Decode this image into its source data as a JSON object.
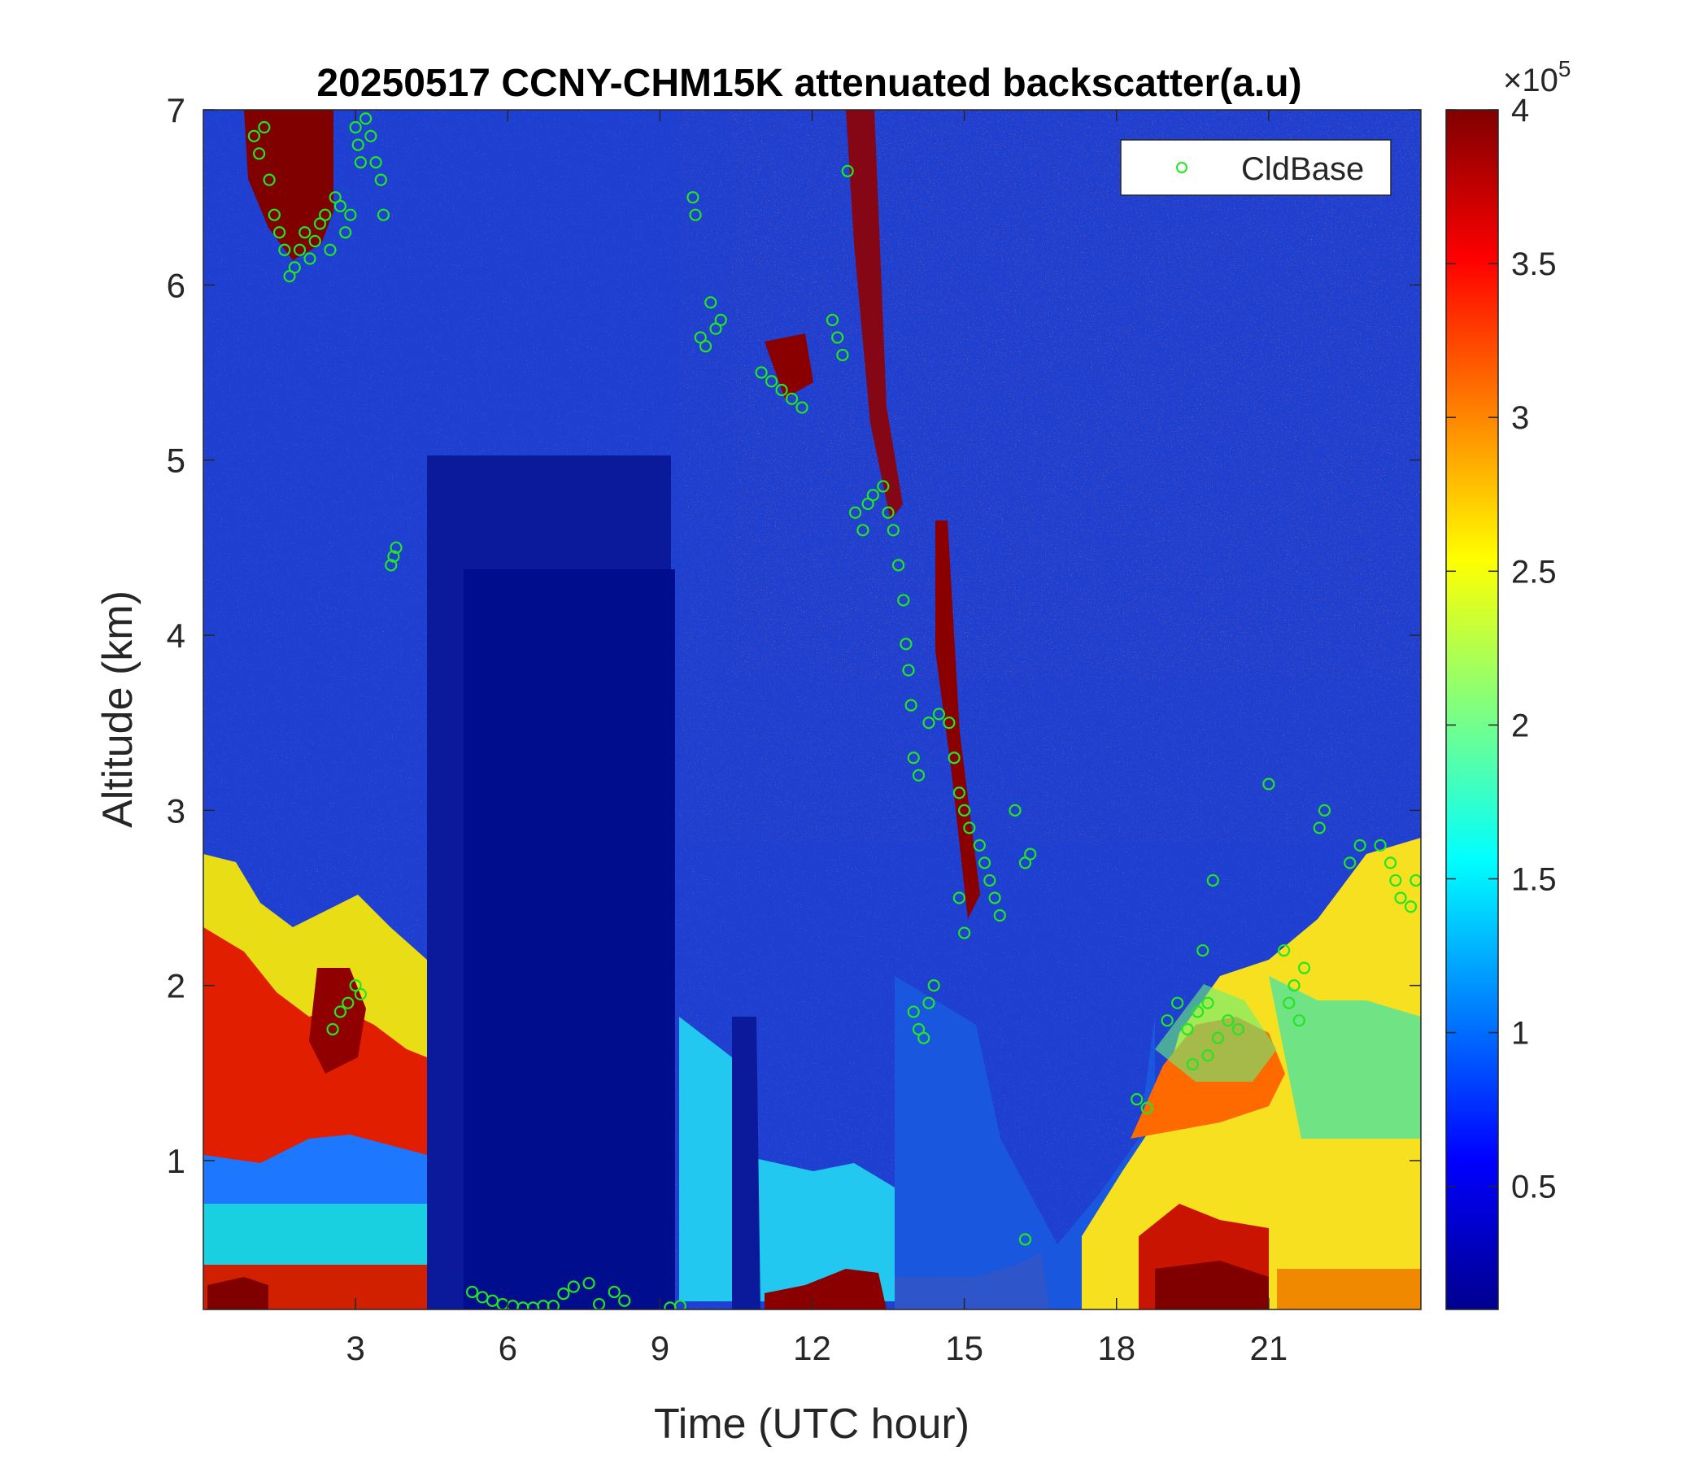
{
  "chart_data": {
    "type": "heatmap",
    "title": "20250517 CCNY-CHM15K attenuated backscatter(a.u)",
    "xlabel": "Time (UTC hour)",
    "ylabel": "Altitude (km)",
    "xlim": [
      0,
      24
    ],
    "ylim": [
      0.15,
      7
    ],
    "xticks": [
      3,
      6,
      9,
      12,
      15,
      18,
      21
    ],
    "yticks": [
      1,
      2,
      3,
      4,
      5,
      6,
      7
    ],
    "colormap": "jet",
    "colorbar": {
      "range": [
        0.1,
        4
      ],
      "ticks": [
        0.5,
        1,
        1.5,
        2,
        2.5,
        3,
        3.5,
        4
      ],
      "multiplier_base": "×10",
      "multiplier_exp": "5"
    },
    "legend": {
      "position": "top-right",
      "entries": [
        "CldBase"
      ],
      "marker_color": "#22e622"
    },
    "cloud_base_series": {
      "name": "CldBase",
      "points": [
        [
          1.0,
          6.85
        ],
        [
          1.1,
          6.75
        ],
        [
          1.2,
          6.9
        ],
        [
          1.3,
          6.6
        ],
        [
          1.4,
          6.4
        ],
        [
          1.5,
          6.3
        ],
        [
          1.6,
          6.2
        ],
        [
          1.7,
          6.05
        ],
        [
          1.8,
          6.1
        ],
        [
          1.9,
          6.2
        ],
        [
          2.0,
          6.3
        ],
        [
          2.1,
          6.15
        ],
        [
          2.2,
          6.25
        ],
        [
          2.3,
          6.35
        ],
        [
          2.4,
          6.4
        ],
        [
          2.5,
          6.2
        ],
        [
          2.6,
          6.5
        ],
        [
          2.7,
          6.45
        ],
        [
          2.8,
          6.3
        ],
        [
          2.9,
          6.4
        ],
        [
          3.0,
          6.9
        ],
        [
          3.05,
          6.8
        ],
        [
          3.1,
          6.7
        ],
        [
          3.2,
          6.95
        ],
        [
          3.3,
          6.85
        ],
        [
          3.4,
          6.7
        ],
        [
          3.5,
          6.6
        ],
        [
          3.55,
          6.4
        ],
        [
          3.7,
          4.4
        ],
        [
          3.75,
          4.45
        ],
        [
          3.8,
          4.5
        ],
        [
          2.55,
          1.75
        ],
        [
          2.7,
          1.85
        ],
        [
          2.85,
          1.9
        ],
        [
          3.0,
          2.0
        ],
        [
          3.1,
          1.95
        ],
        [
          5.3,
          0.25
        ],
        [
          5.5,
          0.22
        ],
        [
          5.7,
          0.2
        ],
        [
          5.9,
          0.18
        ],
        [
          6.1,
          0.17
        ],
        [
          6.3,
          0.16
        ],
        [
          6.5,
          0.16
        ],
        [
          6.7,
          0.17
        ],
        [
          6.9,
          0.17
        ],
        [
          7.1,
          0.24
        ],
        [
          7.3,
          0.28
        ],
        [
          7.6,
          0.3
        ],
        [
          7.8,
          0.18
        ],
        [
          8.1,
          0.25
        ],
        [
          8.3,
          0.2
        ],
        [
          9.2,
          0.16
        ],
        [
          9.4,
          0.17
        ],
        [
          9.65,
          6.5
        ],
        [
          9.7,
          6.4
        ],
        [
          9.8,
          5.7
        ],
        [
          9.9,
          5.65
        ],
        [
          10.0,
          5.9
        ],
        [
          10.1,
          5.75
        ],
        [
          10.2,
          5.8
        ],
        [
          11.0,
          5.5
        ],
        [
          11.2,
          5.45
        ],
        [
          11.4,
          5.4
        ],
        [
          11.6,
          5.35
        ],
        [
          11.8,
          5.3
        ],
        [
          12.4,
          5.8
        ],
        [
          12.5,
          5.7
        ],
        [
          12.6,
          5.6
        ],
        [
          12.7,
          6.65
        ],
        [
          12.85,
          4.7
        ],
        [
          13.0,
          4.6
        ],
        [
          13.1,
          4.75
        ],
        [
          13.2,
          4.8
        ],
        [
          13.4,
          4.85
        ],
        [
          13.5,
          4.7
        ],
        [
          13.6,
          4.6
        ],
        [
          13.7,
          4.4
        ],
        [
          13.8,
          4.2
        ],
        [
          13.85,
          3.95
        ],
        [
          13.9,
          3.8
        ],
        [
          13.95,
          3.6
        ],
        [
          14.0,
          3.3
        ],
        [
          14.1,
          3.2
        ],
        [
          14.0,
          1.85
        ],
        [
          14.1,
          1.75
        ],
        [
          14.2,
          1.7
        ],
        [
          14.3,
          1.9
        ],
        [
          14.4,
          2.0
        ],
        [
          14.3,
          3.5
        ],
        [
          14.5,
          3.55
        ],
        [
          14.7,
          3.5
        ],
        [
          14.8,
          3.3
        ],
        [
          14.9,
          3.1
        ],
        [
          15.0,
          3.0
        ],
        [
          15.1,
          2.9
        ],
        [
          15.3,
          2.8
        ],
        [
          15.4,
          2.7
        ],
        [
          15.5,
          2.6
        ],
        [
          15.6,
          2.5
        ],
        [
          15.7,
          2.4
        ],
        [
          14.9,
          2.5
        ],
        [
          15.0,
          2.3
        ],
        [
          16.0,
          3.0
        ],
        [
          16.2,
          2.7
        ],
        [
          16.3,
          2.75
        ],
        [
          16.2,
          0.55
        ],
        [
          18.4,
          1.35
        ],
        [
          18.6,
          1.3
        ],
        [
          19.0,
          1.8
        ],
        [
          19.2,
          1.9
        ],
        [
          19.4,
          1.75
        ],
        [
          19.6,
          1.85
        ],
        [
          19.8,
          1.9
        ],
        [
          20.0,
          1.7
        ],
        [
          20.2,
          1.8
        ],
        [
          20.4,
          1.75
        ],
        [
          19.7,
          2.2
        ],
        [
          19.9,
          2.6
        ],
        [
          19.5,
          1.55
        ],
        [
          19.8,
          1.6
        ],
        [
          21.0,
          3.15
        ],
        [
          21.3,
          2.2
        ],
        [
          21.4,
          1.9
        ],
        [
          21.5,
          2.0
        ],
        [
          21.6,
          1.8
        ],
        [
          21.7,
          2.1
        ],
        [
          22.0,
          2.9
        ],
        [
          22.1,
          3.0
        ],
        [
          22.6,
          2.7
        ],
        [
          22.8,
          2.8
        ],
        [
          23.2,
          2.8
        ],
        [
          23.4,
          2.7
        ],
        [
          23.5,
          2.6
        ],
        [
          23.6,
          2.5
        ],
        [
          23.8,
          2.45
        ],
        [
          23.9,
          2.6
        ]
      ]
    }
  }
}
